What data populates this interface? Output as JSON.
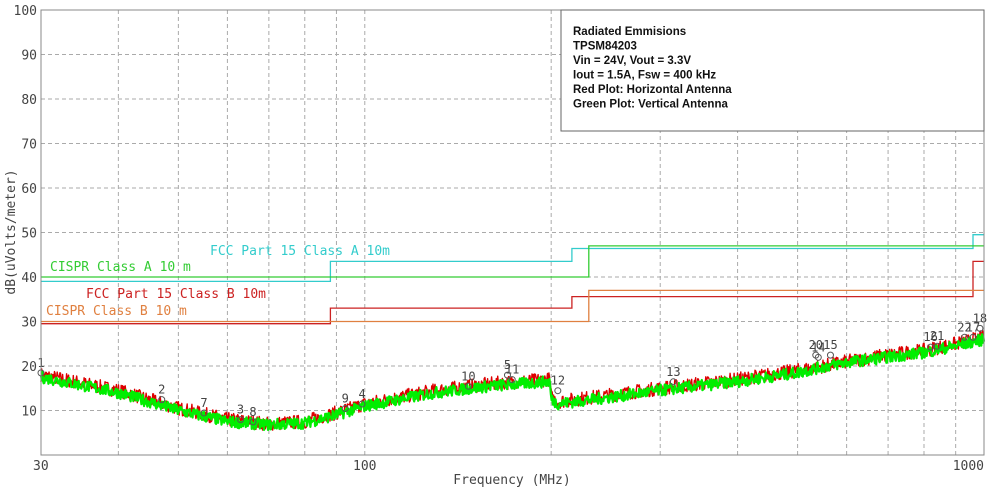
{
  "chart_data": {
    "type": "line",
    "xlabel": "Frequency (MHz)",
    "ylabel": "dB(uVolts/meter)",
    "x_scale": "log",
    "xlim": [
      30,
      1000
    ],
    "ylim": [
      0,
      100
    ],
    "x_ticks": [
      30,
      100,
      1000
    ],
    "y_ticks": [
      10,
      20,
      30,
      40,
      50,
      60,
      70,
      80,
      90,
      100
    ],
    "grid": true,
    "annotation": {
      "lines": [
        "Radiated Emmisions",
        "TPSM84203",
        "Vin = 24V, Vout = 3.3V",
        "Iout = 1.5A, Fsw = 400 kHz",
        "Red Plot: Horizontal Antenna",
        "Green Plot: Vertical Antenna"
      ],
      "placement": "top-right"
    },
    "limit_lines": [
      {
        "name": "FCC Part 15 Class A 10m",
        "color": "#33cccc",
        "x": [
          30,
          88,
          88,
          216,
          216,
          960,
          960,
          1000
        ],
        "y": [
          39,
          39,
          43.5,
          43.5,
          46.4,
          46.4,
          49.5,
          49.5
        ]
      },
      {
        "name": "CISPR Class A 10 m",
        "color": "#33cc33",
        "x": [
          30,
          230,
          230,
          1000
        ],
        "y": [
          40,
          40,
          47,
          47
        ]
      },
      {
        "name": "FCC Part 15  Class B 10m",
        "color": "#cc2222",
        "x": [
          30,
          88,
          88,
          216,
          216,
          960,
          960,
          1000
        ],
        "y": [
          29.5,
          29.5,
          33,
          33,
          35.6,
          35.6,
          43.5,
          43.5
        ]
      },
      {
        "name": "CISPR Class B 10 m",
        "color": "#e08040",
        "x": [
          30,
          230,
          230,
          1000
        ],
        "y": [
          30,
          30,
          37,
          37
        ]
      }
    ],
    "series": [
      {
        "name": "Horizontal Antenna",
        "color": "#dd0000",
        "x": [
          30,
          40,
          50,
          60,
          70,
          80,
          90,
          100,
          130,
          160,
          199,
          200,
          205,
          250,
          300,
          400,
          500,
          550,
          600,
          700,
          800,
          900,
          1000
        ],
        "y": [
          18,
          14.5,
          10.5,
          8,
          7,
          7.5,
          9.5,
          11.5,
          14.5,
          16,
          17,
          13,
          12,
          13.5,
          15,
          17,
          19,
          20,
          21,
          22.5,
          23.5,
          25,
          26.5
        ]
      },
      {
        "name": "Vertical Antenna",
        "color": "#00ee00",
        "x": [
          30,
          40,
          50,
          60,
          70,
          80,
          90,
          100,
          130,
          160,
          199,
          200,
          205,
          250,
          300,
          400,
          500,
          550,
          600,
          700,
          800,
          900,
          1000
        ],
        "y": [
          17.5,
          14,
          10,
          7.5,
          6.8,
          7.2,
          9,
          11,
          14,
          15.5,
          16.5,
          12.5,
          11.5,
          13,
          14.5,
          16.5,
          18.5,
          19.8,
          20.8,
          22,
          23,
          24.5,
          26
        ]
      }
    ],
    "markers": [
      {
        "label": "1",
        "x": 30,
        "y": 18
      },
      {
        "label": "2",
        "x": 47,
        "y": 12
      },
      {
        "label": "7",
        "x": 55,
        "y": 9
      },
      {
        "label": "3",
        "x": 63,
        "y": 7.5
      },
      {
        "label": "8",
        "x": 66,
        "y": 7
      },
      {
        "label": "9",
        "x": 93,
        "y": 10
      },
      {
        "label": "4",
        "x": 99,
        "y": 11
      },
      {
        "label": "10",
        "x": 147,
        "y": 15
      },
      {
        "label": "5",
        "x": 170,
        "y": 17.5
      },
      {
        "label": "11",
        "x": 173,
        "y": 16.5
      },
      {
        "label": "12",
        "x": 205,
        "y": 14
      },
      {
        "label": "13",
        "x": 315,
        "y": 16
      },
      {
        "label": "20",
        "x": 535,
        "y": 22
      },
      {
        "label": "14",
        "x": 540,
        "y": 21.5
      },
      {
        "label": "15",
        "x": 565,
        "y": 22
      },
      {
        "label": "16",
        "x": 820,
        "y": 23.8
      },
      {
        "label": "21",
        "x": 840,
        "y": 24
      },
      {
        "label": "22",
        "x": 930,
        "y": 26
      },
      {
        "label": "17",
        "x": 960,
        "y": 26
      },
      {
        "label": "18",
        "x": 985,
        "y": 28
      }
    ]
  }
}
